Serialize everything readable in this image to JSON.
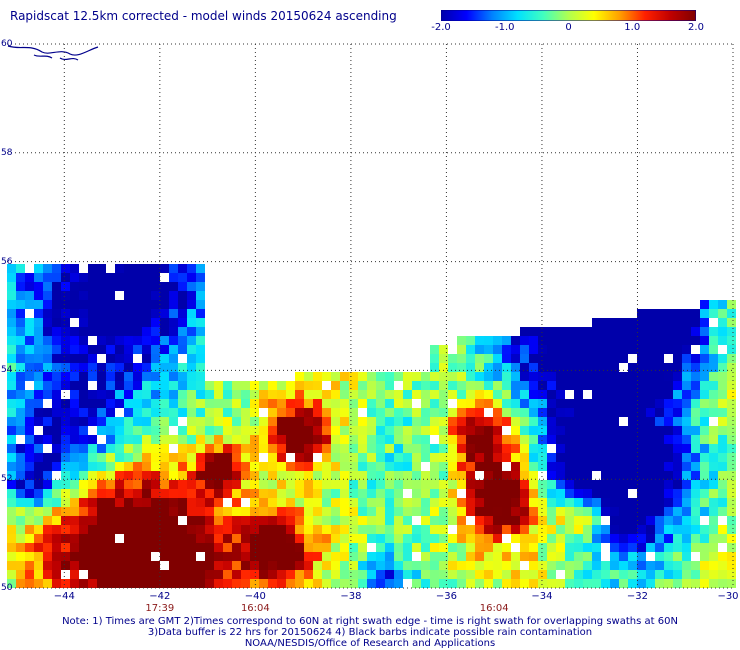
{
  "title": "Rapidscat 12.5km corrected - model winds 20150624 ascending",
  "colorbar": {
    "ticks": [
      "-2.0",
      "-1.0",
      "0",
      "1.0",
      "2.0"
    ],
    "tick_values": [
      -2.0,
      -1.0,
      0.0,
      1.0,
      2.0
    ],
    "range": [
      -2.0,
      2.0
    ],
    "colors": [
      "#0000aa",
      "#0000ff",
      "#0080ff",
      "#00e0ff",
      "#40ffc0",
      "#b0ff50",
      "#ffff00",
      "#ffa000",
      "#ff2000",
      "#c00000",
      "#800000"
    ]
  },
  "map": {
    "lon_range": [
      -45.2,
      -30
    ],
    "lat_range": [
      50,
      60
    ],
    "lon_labels": [
      {
        "value": -44,
        "text": "−44"
      },
      {
        "value": -42,
        "text": "−42"
      },
      {
        "value": -40,
        "text": "−40"
      },
      {
        "value": -38,
        "text": "−38"
      },
      {
        "value": -36,
        "text": "−36"
      },
      {
        "value": -34,
        "text": "−34"
      },
      {
        "value": -32,
        "text": "−32"
      },
      {
        "value": -30,
        "text": "−30"
      }
    ],
    "lat_labels": [
      {
        "value": 60,
        "text": "60"
      },
      {
        "value": 58,
        "text": "58"
      },
      {
        "value": 56,
        "text": "56"
      },
      {
        "value": 54,
        "text": "54"
      },
      {
        "value": 52,
        "text": "52"
      },
      {
        "value": 50,
        "text": "50"
      }
    ],
    "swath_times": [
      {
        "lon": -42,
        "text": "17:39"
      },
      {
        "lon": -40,
        "text": "16:04"
      },
      {
        "lon": -35,
        "text": "16:04"
      }
    ],
    "coast_color": "#00008b",
    "grid": "dotted"
  },
  "notes": {
    "line1": "Note: 1) Times are GMT 2)Times correspond to 60N at right swath edge - time is right swath for overlapping swaths at 60N",
    "line2": "3)Data buffer is 22 hrs for 20150624 4) Black barbs indicate possible rain contamination",
    "line3": "NOAA/NESDIS/Office of Research and Applications"
  }
}
